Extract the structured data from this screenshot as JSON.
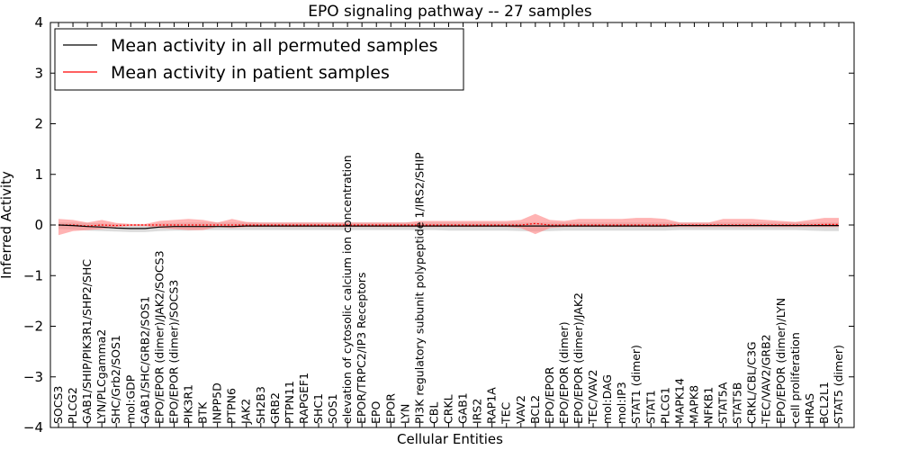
{
  "chart_data": {
    "type": "line",
    "title": "EPO signaling pathway -- 27 samples",
    "xlabel": "Cellular Entities",
    "ylabel": "Inferred Activity",
    "ylim": [
      -4,
      4
    ],
    "yticks": [
      "−4",
      "−3",
      "−2",
      "−1",
      "0",
      "1",
      "2",
      "3",
      "4"
    ],
    "yticks_values": [
      -4,
      -3,
      -2,
      -1,
      0,
      1,
      2,
      3,
      4
    ],
    "grid": false,
    "legend": "top-left",
    "categories": [
      "SOCS3",
      "PLCG2",
      "GAB1/SHIP/PIK3R1/SHP2/SHC",
      "LYN/PLCgamma2",
      "SHC/Grb2/SOS1",
      "mol:GDP",
      "GAB1/SHC/GRB2/SOS1",
      "EPO/EPOR (dimer)/JAK2/SOCS3",
      "EPO/EPOR (dimer)/SOCS3",
      "PIK3R1",
      "BTK",
      "INPP5D",
      "PTPN6",
      "JAK2",
      "SH2B3",
      "GRB2",
      "PTPN11",
      "RAPGEF1",
      "SHC1",
      "SOS1",
      "elevation of cytosolic calcium ion concentration",
      "EPOR/TRPC2/IP3 Receptors",
      "EPO",
      "EPOR",
      "LYN",
      "PI3K regulatory subunit polypeptide 1/IRS2/SHIP",
      "CBL",
      "CRKL",
      "GAB1",
      "IRS2",
      "RAP1A",
      "TEC",
      "VAV2",
      "BCL2",
      "EPO/EPOR",
      "EPO/EPOR (dimer)",
      "EPO/EPOR (dimer)/JAK2",
      "TEC/VAV2",
      "mol:DAG",
      "mol:IP3",
      "STAT1 (dimer)",
      "STAT1",
      "PLCG1",
      "MAPK14",
      "MAPK8",
      "NFKB1",
      "STAT5A",
      "STAT5B",
      "CRKL/CBL/C3G",
      "TEC/VAV2/GRB2",
      "EPO/EPOR (dimer)/LYN",
      "cell proliferation",
      "HRAS",
      "BCL2L1",
      "STAT5 (dimer)"
    ],
    "series": [
      {
        "name": "Mean activity in all permuted samples",
        "color": "#000000",
        "band_color": "#c0c0c0",
        "values": [
          0.0,
          -0.01,
          -0.03,
          -0.04,
          -0.06,
          -0.07,
          -0.07,
          -0.04,
          -0.03,
          -0.03,
          -0.03,
          -0.03,
          -0.03,
          -0.02,
          -0.02,
          -0.02,
          -0.02,
          -0.02,
          -0.02,
          -0.02,
          -0.02,
          -0.02,
          -0.02,
          -0.02,
          -0.02,
          -0.02,
          -0.02,
          -0.02,
          -0.02,
          -0.02,
          -0.02,
          -0.02,
          -0.02,
          -0.02,
          -0.02,
          -0.02,
          -0.02,
          -0.02,
          -0.02,
          -0.02,
          -0.02,
          -0.02,
          -0.02,
          -0.01,
          -0.01,
          -0.01,
          -0.01,
          -0.01,
          -0.01,
          -0.01,
          -0.01,
          -0.01,
          -0.01,
          -0.01,
          -0.01
        ],
        "upper": [
          0.05,
          0.05,
          0.04,
          0.03,
          0.02,
          0.01,
          0.01,
          0.03,
          0.04,
          0.05,
          0.05,
          0.05,
          0.05,
          0.05,
          0.05,
          0.05,
          0.05,
          0.05,
          0.05,
          0.05,
          0.05,
          0.05,
          0.05,
          0.05,
          0.05,
          0.05,
          0.05,
          0.05,
          0.05,
          0.05,
          0.05,
          0.05,
          0.05,
          0.05,
          0.05,
          0.05,
          0.05,
          0.05,
          0.05,
          0.05,
          0.05,
          0.05,
          0.05,
          0.05,
          0.05,
          0.05,
          0.05,
          0.05,
          0.05,
          0.05,
          0.05,
          0.05,
          0.05,
          0.05,
          0.05
        ],
        "lower": [
          -0.08,
          -0.09,
          -0.11,
          -0.12,
          -0.13,
          -0.14,
          -0.14,
          -0.12,
          -0.11,
          -0.11,
          -0.1,
          -0.1,
          -0.1,
          -0.1,
          -0.1,
          -0.1,
          -0.1,
          -0.1,
          -0.1,
          -0.1,
          -0.1,
          -0.1,
          -0.1,
          -0.1,
          -0.1,
          -0.1,
          -0.1,
          -0.11,
          -0.11,
          -0.11,
          -0.11,
          -0.11,
          -0.12,
          -0.13,
          -0.12,
          -0.11,
          -0.11,
          -0.11,
          -0.11,
          -0.11,
          -0.11,
          -0.11,
          -0.11,
          -0.1,
          -0.1,
          -0.1,
          -0.1,
          -0.1,
          -0.1,
          -0.1,
          -0.1,
          -0.1,
          -0.11,
          -0.12,
          -0.12
        ]
      },
      {
        "name": "Mean activity in patient samples",
        "color": "#ff0000",
        "band_color": "#ff8080",
        "values": [
          0.0,
          0.0,
          -0.02,
          0.0,
          -0.01,
          0.0,
          0.0,
          0.0,
          0.0,
          0.0,
          0.0,
          0.0,
          0.0,
          0.0,
          0.0,
          0.0,
          0.0,
          0.0,
          0.0,
          0.0,
          0.0,
          0.0,
          0.0,
          0.0,
          0.0,
          0.0,
          0.0,
          0.0,
          0.0,
          0.0,
          0.0,
          0.0,
          0.0,
          0.03,
          0.0,
          0.0,
          0.0,
          0.0,
          0.0,
          0.0,
          0.0,
          0.0,
          0.0,
          0.0,
          0.0,
          0.0,
          0.0,
          0.0,
          0.0,
          0.0,
          0.0,
          0.0,
          0.0,
          0.01,
          0.01
        ],
        "upper": [
          0.12,
          0.1,
          0.05,
          0.1,
          0.04,
          0.02,
          0.02,
          0.08,
          0.1,
          0.12,
          0.1,
          0.05,
          0.12,
          0.06,
          0.05,
          0.05,
          0.05,
          0.05,
          0.05,
          0.05,
          0.05,
          0.05,
          0.05,
          0.05,
          0.05,
          0.08,
          0.08,
          0.08,
          0.08,
          0.08,
          0.08,
          0.08,
          0.1,
          0.22,
          0.1,
          0.08,
          0.12,
          0.12,
          0.12,
          0.12,
          0.14,
          0.14,
          0.12,
          0.05,
          0.05,
          0.05,
          0.12,
          0.12,
          0.12,
          0.1,
          0.08,
          0.06,
          0.1,
          0.14,
          0.14
        ],
        "lower": [
          -0.2,
          -0.12,
          -0.1,
          -0.08,
          -0.04,
          -0.02,
          -0.02,
          -0.06,
          -0.08,
          -0.1,
          -0.1,
          -0.04,
          -0.06,
          -0.04,
          -0.04,
          -0.04,
          -0.04,
          -0.04,
          -0.04,
          -0.04,
          -0.04,
          -0.04,
          -0.04,
          -0.04,
          -0.04,
          -0.04,
          -0.04,
          -0.04,
          -0.04,
          -0.04,
          -0.04,
          -0.04,
          -0.06,
          -0.18,
          -0.06,
          -0.04,
          -0.04,
          -0.04,
          -0.04,
          -0.04,
          -0.04,
          -0.04,
          -0.04,
          -0.04,
          -0.04,
          -0.04,
          -0.04,
          -0.04,
          -0.04,
          -0.04,
          -0.04,
          -0.04,
          -0.04,
          -0.04,
          -0.04
        ]
      }
    ]
  }
}
